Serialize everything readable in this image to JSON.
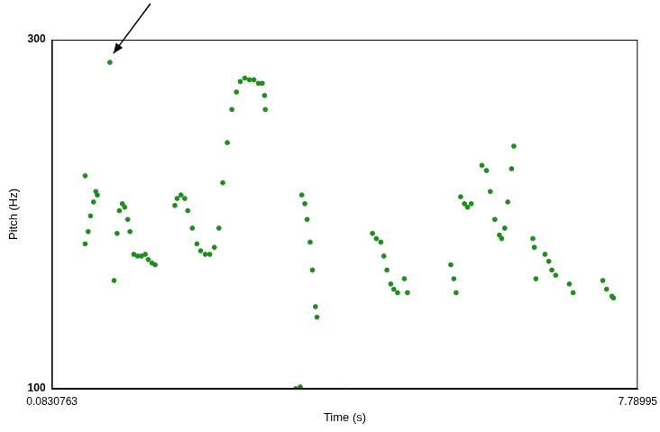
{
  "chart_data": {
    "type": "scatter",
    "xlabel": "Time (s)",
    "ylabel": "Pitch (Hz)",
    "xlim": [
      0.0830763,
      7.78995
    ],
    "xticks": [
      0.0830763,
      7.78995
    ],
    "ylim": [
      100,
      300
    ],
    "yticks": [
      100,
      300
    ],
    "grid": false,
    "color": "#1e8c1e",
    "marker": "circle",
    "x": [
      0.52,
      0.52,
      0.56,
      0.59,
      0.63,
      0.66,
      0.68,
      0.845,
      0.9,
      0.94,
      0.97,
      1.01,
      1.04,
      1.08,
      1.11,
      1.16,
      1.21,
      1.26,
      1.31,
      1.35,
      1.4,
      1.44,
      1.7,
      1.73,
      1.78,
      1.83,
      1.87,
      1.93,
      1.99,
      2.04,
      2.1,
      2.16,
      2.22,
      2.28,
      2.33,
      2.39,
      2.45,
      2.51,
      2.56,
      2.62,
      2.68,
      2.74,
      2.8,
      2.85,
      2.88,
      2.89,
      3.29,
      3.35,
      3.37,
      3.41,
      3.44,
      3.48,
      3.51,
      3.55,
      3.57,
      4.3,
      4.35,
      4.41,
      4.45,
      4.49,
      4.54,
      4.58,
      4.63,
      4.72,
      4.76,
      5.33,
      5.37,
      5.4,
      5.46,
      5.51,
      5.55,
      5.6,
      5.74,
      5.8,
      5.85,
      5.91,
      5.97,
      6.0,
      6.04,
      6.08,
      6.13,
      6.16,
      6.41,
      6.43,
      6.45,
      6.57,
      6.62,
      6.66,
      6.71,
      6.89,
      6.94,
      7.33,
      7.38,
      7.45,
      7.47
    ],
    "values": [
      222,
      183,
      190,
      199,
      207,
      213,
      211,
      287,
      162,
      189,
      202,
      206,
      204,
      197,
      190,
      177,
      176,
      176,
      177,
      174,
      172,
      171,
      205,
      209,
      211,
      209,
      202,
      192,
      183,
      179,
      177,
      177,
      181,
      192,
      218,
      241,
      260,
      270,
      276,
      278,
      277,
      277,
      275,
      275,
      268,
      260,
      100,
      101,
      211,
      206,
      197,
      184,
      168,
      147,
      141,
      189,
      186,
      184,
      176,
      168,
      160,
      157,
      155,
      163,
      155,
      171,
      163,
      155,
      210,
      206,
      204,
      206,
      228,
      225,
      213,
      197,
      188,
      186,
      192,
      207,
      226,
      239,
      186,
      181,
      163,
      177,
      173,
      168,
      165,
      160,
      155,
      162,
      157,
      153,
      152
    ]
  }
}
